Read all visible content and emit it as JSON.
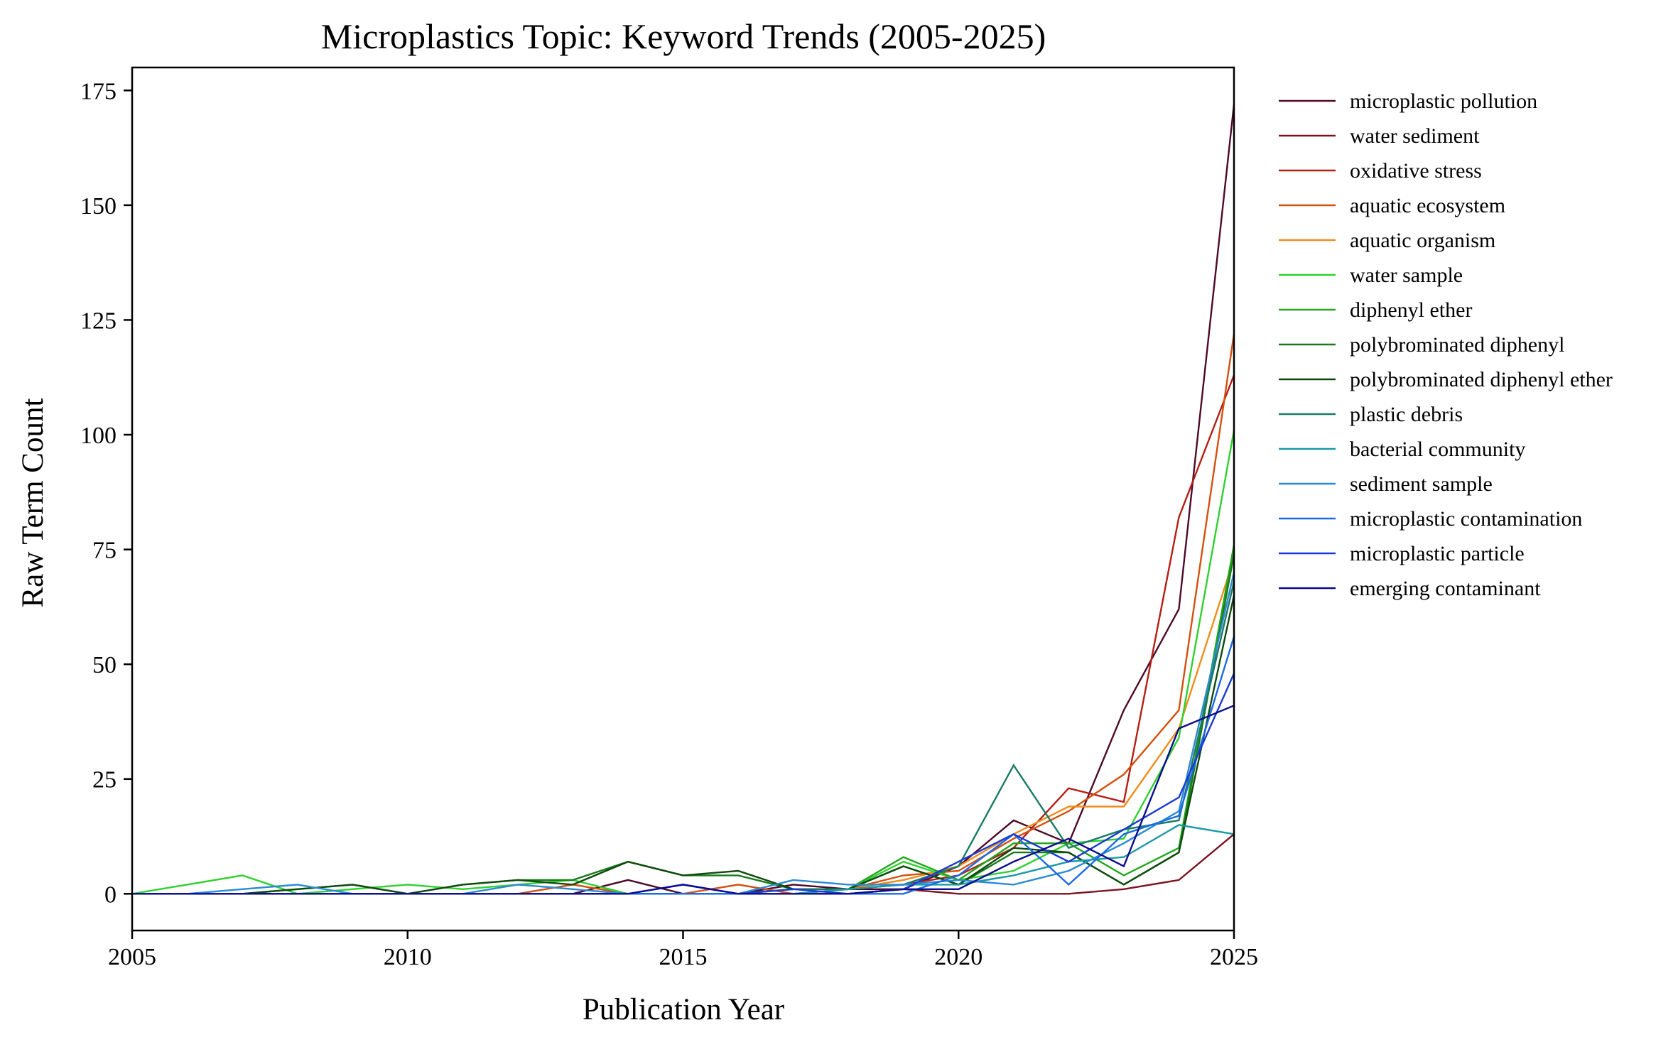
{
  "chart_data": {
    "type": "line",
    "title": "Microplastics Topic: Keyword Trends (2005-2025)",
    "xlabel": "Publication Year",
    "ylabel": "Raw Term Count",
    "xlim": [
      2005,
      2025
    ],
    "ylim": [
      -8,
      180
    ],
    "xticks": [
      2005,
      2010,
      2015,
      2020,
      2025
    ],
    "yticks": [
      0,
      25,
      50,
      75,
      100,
      125,
      150,
      175
    ],
    "grid": false,
    "legend_position": "outside-right-top",
    "x": [
      2005,
      2006,
      2007,
      2008,
      2009,
      2010,
      2011,
      2012,
      2013,
      2014,
      2015,
      2016,
      2017,
      2018,
      2019,
      2020,
      2021,
      2022,
      2023,
      2024,
      2025
    ],
    "series": [
      {
        "name": "microplastic pollution",
        "color": "#4d0a2a",
        "values": [
          0,
          0,
          0,
          0,
          0,
          0,
          0,
          0,
          0,
          3,
          0,
          0,
          2,
          1,
          1,
          6,
          16,
          11,
          40,
          62,
          172
        ]
      },
      {
        "name": "water sediment",
        "color": "#7a1420",
        "values": [
          0,
          0,
          0,
          0,
          0,
          0,
          0,
          0,
          0,
          0,
          0,
          0,
          0,
          0,
          1,
          0,
          0,
          0,
          1,
          3,
          13
        ]
      },
      {
        "name": "oxidative stress",
        "color": "#b51e14",
        "values": [
          0,
          0,
          0,
          0,
          0,
          0,
          0,
          0,
          0,
          0,
          0,
          0,
          1,
          1,
          2,
          4,
          10,
          23,
          20,
          82,
          113
        ]
      },
      {
        "name": "aquatic ecosystem",
        "color": "#d4500f",
        "values": [
          0,
          0,
          0,
          0,
          0,
          0,
          0,
          0,
          2,
          0,
          0,
          2,
          0,
          1,
          4,
          5,
          12,
          18,
          26,
          40,
          122
        ]
      },
      {
        "name": "aquatic organism",
        "color": "#f08c1a",
        "values": [
          0,
          0,
          0,
          0,
          0,
          0,
          0,
          0,
          0,
          0,
          0,
          0,
          0,
          1,
          3,
          6,
          13,
          19,
          19,
          36,
          73
        ]
      },
      {
        "name": "water sample",
        "color": "#2fd12f",
        "values": [
          0,
          2,
          4,
          0,
          1,
          2,
          1,
          2,
          3,
          0,
          0,
          0,
          1,
          1,
          7,
          3,
          5,
          11,
          12,
          34,
          101
        ]
      },
      {
        "name": "diphenyl ether",
        "color": "#22a81c",
        "values": [
          0,
          0,
          0,
          0,
          0,
          0,
          0,
          0,
          0,
          0,
          0,
          0,
          0,
          1,
          8,
          3,
          11,
          11,
          4,
          10,
          76
        ]
      },
      {
        "name": "polybrominated diphenyl",
        "color": "#1a7a1a",
        "values": [
          0,
          0,
          0,
          1,
          2,
          0,
          2,
          3,
          3,
          7,
          4,
          4,
          1,
          1,
          6,
          2,
          9,
          9,
          2,
          9,
          74
        ]
      },
      {
        "name": "polybrominated diphenyl ether",
        "color": "#0e4a0e",
        "values": [
          0,
          0,
          0,
          1,
          2,
          0,
          2,
          3,
          2,
          7,
          4,
          5,
          1,
          1,
          6,
          2,
          10,
          9,
          2,
          9,
          65
        ]
      },
      {
        "name": "plastic debris",
        "color": "#1a7a66",
        "values": [
          0,
          0,
          0,
          0,
          0,
          0,
          0,
          0,
          0,
          0,
          0,
          0,
          1,
          1,
          2,
          6,
          28,
          10,
          14,
          16,
          68
        ]
      },
      {
        "name": "bacterial community",
        "color": "#1a9aa6",
        "values": [
          0,
          0,
          0,
          0,
          0,
          0,
          0,
          0,
          0,
          0,
          0,
          0,
          0,
          1,
          2,
          2,
          4,
          7,
          8,
          15,
          13
        ]
      },
      {
        "name": "sediment sample",
        "color": "#2a8ad4",
        "values": [
          0,
          0,
          1,
          2,
          0,
          0,
          0,
          2,
          1,
          0,
          0,
          0,
          3,
          2,
          2,
          3,
          2,
          5,
          11,
          18,
          70
        ]
      },
      {
        "name": "microplastic contamination",
        "color": "#1a6ae6",
        "values": [
          0,
          0,
          0,
          0,
          0,
          0,
          0,
          0,
          0,
          0,
          0,
          0,
          0,
          0,
          0,
          4,
          13,
          2,
          13,
          17,
          56
        ]
      },
      {
        "name": "microplastic particle",
        "color": "#1a3ad4",
        "values": [
          0,
          0,
          0,
          0,
          0,
          0,
          0,
          0,
          0,
          0,
          2,
          0,
          1,
          0,
          1,
          7,
          13,
          7,
          14,
          21,
          48
        ]
      },
      {
        "name": "emerging contaminant",
        "color": "#0c0c8c",
        "values": [
          0,
          0,
          0,
          0,
          0,
          0,
          0,
          0,
          0,
          0,
          2,
          0,
          0,
          0,
          1,
          1,
          7,
          12,
          6,
          36,
          41
        ]
      }
    ]
  }
}
